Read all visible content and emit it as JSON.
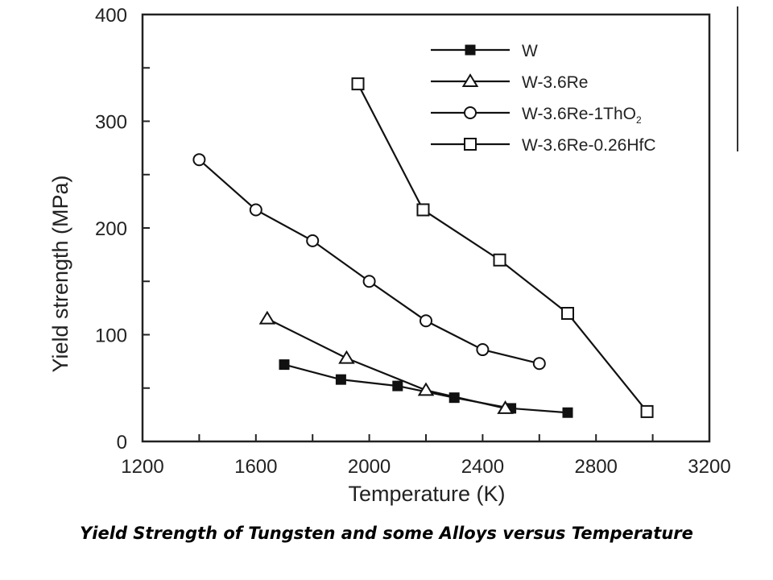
{
  "caption": "Yield Strength of Tungsten and some Alloys versus Temperature",
  "chart_data": {
    "type": "line",
    "title": "",
    "xlabel": "Temperature  (K)",
    "ylabel": "Yield strength  (MPa)",
    "xlim": [
      1200,
      3200
    ],
    "ylim": [
      0,
      400
    ],
    "xticks": [
      1200,
      1600,
      2000,
      2400,
      2800,
      3200
    ],
    "yticks": [
      0,
      100,
      200,
      300,
      400
    ],
    "grid": false,
    "legend_position": "top-right",
    "series": [
      {
        "name": "W",
        "marker": "filled-square",
        "x": [
          1700,
          1900,
          2100,
          2300,
          2500,
          2700
        ],
        "y": [
          72,
          58,
          52,
          41,
          31,
          27
        ]
      },
      {
        "name": "W-3.6Re",
        "marker": "open-triangle",
        "x": [
          1640,
          1920,
          2200,
          2480
        ],
        "y": [
          115,
          78,
          48,
          31
        ]
      },
      {
        "name": "W-3.6Re-1ThO",
        "name_subscript": "2",
        "marker": "open-circle",
        "x": [
          1400,
          1600,
          1800,
          2000,
          2200,
          2400,
          2600
        ],
        "y": [
          264,
          217,
          188,
          150,
          113,
          86,
          73
        ]
      },
      {
        "name": "W-3.6Re-0.26HfC",
        "marker": "open-square",
        "x": [
          1960,
          2190,
          2460,
          2700,
          2980
        ],
        "y": [
          335,
          217,
          170,
          120,
          28
        ]
      }
    ]
  }
}
